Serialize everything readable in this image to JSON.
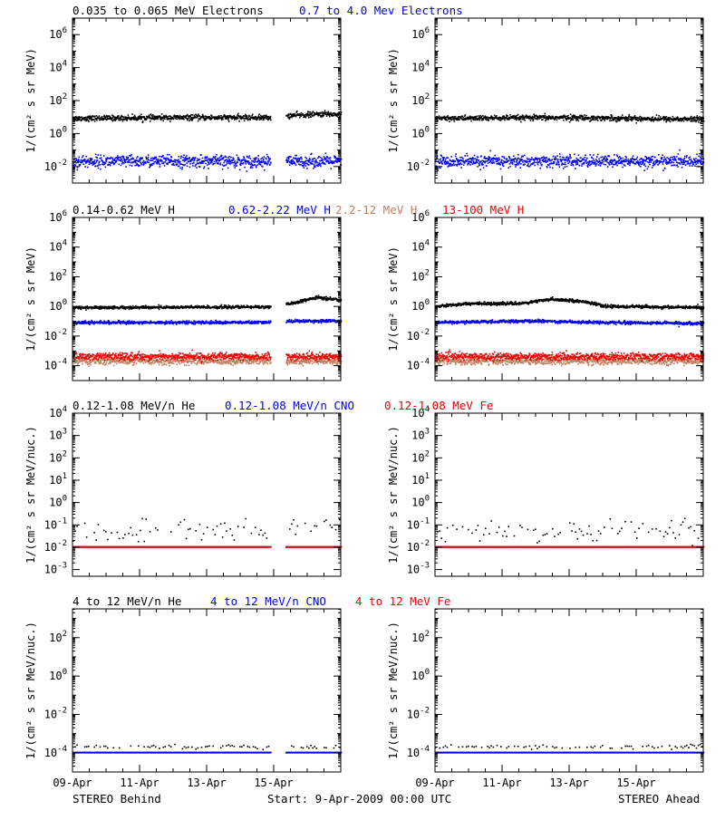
{
  "colors": {
    "black": "#000000",
    "blue": "#0000ee",
    "brown": "#c08060",
    "red": "#ee0000"
  },
  "x_axis": {
    "labels": [
      "09-Apr",
      "11-Apr",
      "13-Apr",
      "15-Apr"
    ],
    "xlim": [
      0,
      8
    ],
    "tick_days": [
      0,
      2,
      4,
      6
    ],
    "minor_step": 0.5
  },
  "footer": {
    "left": "STEREO Behind",
    "center": "Start:  9-Apr-2009 00:00 UTC",
    "right": "STEREO Ahead"
  },
  "chart_data": [
    {
      "type": "scatter",
      "row": 0,
      "legend": [
        {
          "text": "0.035 to 0.065 MeV Electrons",
          "color": "#000000"
        },
        {
          "text": "0.7 to 4.0 Mev Electrons",
          "color": "#0000ee"
        }
      ],
      "ylabel": "1/(cm² s sr MeV)",
      "ylim_exp": [
        -3,
        7
      ],
      "tick_exps": [
        -2,
        0,
        2,
        4,
        6
      ],
      "panels": [
        {
          "name": "STEREO Behind",
          "gap": [
            5.9,
            6.35
          ],
          "series": [
            {
              "name": "0.035 to 0.065 MeV Electrons",
              "color": "#000000",
              "profile": [
                [
                  0,
                  8
                ],
                [
                  3,
                  9
                ],
                [
                  5.8,
                  9
                ],
                [
                  6.5,
                  12
                ],
                [
                  7.5,
                  15
                ],
                [
                  8,
                  14
                ]
              ],
              "scatter": 0.08
            },
            {
              "name": "0.7 to 4.0 Mev Electrons",
              "color": "#0000ee",
              "profile": [
                [
                  0,
                  0.02
                ],
                [
                  8,
                  0.02
                ]
              ],
              "scatter": 0.18
            }
          ]
        },
        {
          "name": "STEREO Ahead",
          "gap": null,
          "series": [
            {
              "name": "0.035 to 0.065 MeV Electrons",
              "color": "#000000",
              "profile": [
                [
                  0,
                  8
                ],
                [
                  4,
                  9
                ],
                [
                  8,
                  7
                ]
              ],
              "scatter": 0.08
            },
            {
              "name": "0.7 to 4.0 Mev Electrons",
              "color": "#0000ee",
              "profile": [
                [
                  0,
                  0.02
                ],
                [
                  8,
                  0.02
                ]
              ],
              "scatter": 0.18
            }
          ]
        }
      ]
    },
    {
      "type": "scatter",
      "row": 1,
      "legend": [
        {
          "text": "0.14-0.62 MeV H",
          "color": "#000000"
        },
        {
          "text": "0.62-2.22 MeV H",
          "color": "#0000ee"
        },
        {
          "text": "2.2-12 MeV H",
          "color": "#c08060"
        },
        {
          "text": "13-100 MeV H",
          "color": "#ee0000"
        }
      ],
      "ylabel": "1/(cm² s sr MeV)",
      "ylim_exp": [
        -5,
        6
      ],
      "tick_exps": [
        -4,
        -2,
        0,
        2,
        4,
        6
      ],
      "panels": [
        {
          "name": "STEREO Behind",
          "gap": [
            5.9,
            6.35
          ],
          "series": [
            {
              "name": "0.14-0.62 MeV H",
              "color": "#000000",
              "profile": [
                [
                  0,
                  0.8
                ],
                [
                  5.8,
                  0.9
                ],
                [
                  6.5,
                  1.5
                ],
                [
                  7.3,
                  4
                ],
                [
                  8,
                  2.5
                ]
              ],
              "scatter": 0.05
            },
            {
              "name": "0.62-2.22 MeV H",
              "color": "#0000ee",
              "profile": [
                [
                  0,
                  0.08
                ],
                [
                  5.8,
                  0.08
                ],
                [
                  6.5,
                  0.1
                ],
                [
                  8,
                  0.1
                ]
              ],
              "scatter": 0.05
            },
            {
              "name": "2.2-12 MeV H",
              "color": "#c08060",
              "profile": [
                [
                  0,
                  0.0002
                ],
                [
                  8,
                  0.0002
                ]
              ],
              "scatter": 0.12
            },
            {
              "name": "13-100 MeV H",
              "color": "#ee0000",
              "profile": [
                [
                  0,
                  0.0004
                ],
                [
                  8,
                  0.0004
                ]
              ],
              "scatter": 0.12
            }
          ]
        },
        {
          "name": "STEREO Ahead",
          "gap": null,
          "series": [
            {
              "name": "0.14-0.62 MeV H",
              "color": "#000000",
              "profile": [
                [
                  0,
                  1
                ],
                [
                  1,
                  1.5
                ],
                [
                  2.5,
                  1.5
                ],
                [
                  3.5,
                  3
                ],
                [
                  4.5,
                  2
                ],
                [
                  5,
                  1
                ],
                [
                  8,
                  0.8
                ]
              ],
              "scatter": 0.05
            },
            {
              "name": "0.62-2.22 MeV H",
              "color": "#0000ee",
              "profile": [
                [
                  0,
                  0.08
                ],
                [
                  3,
                  0.1
                ],
                [
                  5,
                  0.08
                ],
                [
                  8,
                  0.07
                ]
              ],
              "scatter": 0.05
            },
            {
              "name": "2.2-12 MeV H",
              "color": "#c08060",
              "profile": [
                [
                  0,
                  0.0002
                ],
                [
                  8,
                  0.0002
                ]
              ],
              "scatter": 0.12
            },
            {
              "name": "13-100 MeV H",
              "color": "#ee0000",
              "profile": [
                [
                  0,
                  0.0004
                ],
                [
                  8,
                  0.0004
                ]
              ],
              "scatter": 0.12
            }
          ]
        }
      ]
    },
    {
      "type": "scatter",
      "row": 2,
      "legend": [
        {
          "text": "0.12-1.08 MeV/n He",
          "color": "#000000"
        },
        {
          "text": "0.12-1.08 MeV/n CNO",
          "color": "#0000ee"
        },
        {
          "text": "0.12-1.08 MeV Fe",
          "color": "#ee0000"
        }
      ],
      "ylabel": "1/(cm² s sr MeV/nuc.)",
      "ylim_exp": [
        -3.3,
        4
      ],
      "tick_exps": [
        -3,
        -2,
        -1,
        0,
        1,
        2,
        3,
        4
      ],
      "panels": [
        {
          "name": "STEREO Behind",
          "gap": [
            5.9,
            6.35
          ],
          "series": [
            {
              "name": "0.12-1.08 MeV/n He",
              "color": "#000000",
              "profile": [
                [
                  0,
                  0.05
                ],
                [
                  5.8,
                  0.05
                ],
                [
                  6.4,
                  0.1
                ],
                [
                  8,
                  0.1
                ]
              ],
              "scatter": 0.25,
              "sparse": true
            },
            {
              "name": "0.12-1.08 MeV/n CNO",
              "color": "#0000ee",
              "profile": [
                [
                  0,
                  0.01
                ],
                [
                  8,
                  0.01
                ]
              ],
              "scatter": 0.0
            },
            {
              "name": "0.12-1.08 MeV Fe",
              "color": "#ee0000",
              "profile": [
                [
                  0,
                  0.01
                ],
                [
                  8,
                  0.01
                ]
              ],
              "scatter": 0.0
            }
          ]
        },
        {
          "name": "STEREO Ahead",
          "gap": null,
          "series": [
            {
              "name": "0.12-1.08 MeV/n He",
              "color": "#000000",
              "profile": [
                [
                  0,
                  0.05
                ],
                [
                  8,
                  0.05
                ]
              ],
              "scatter": 0.25,
              "sparse": true
            },
            {
              "name": "0.12-1.08 MeV/n CNO",
              "color": "#0000ee",
              "profile": [
                [
                  0,
                  0.01
                ],
                [
                  8,
                  0.01
                ]
              ],
              "scatter": 0.0
            },
            {
              "name": "0.12-1.08 MeV Fe",
              "color": "#ee0000",
              "profile": [
                [
                  0,
                  0.01
                ],
                [
                  8,
                  0.01
                ]
              ],
              "scatter": 0.0
            }
          ]
        }
      ]
    },
    {
      "type": "scatter",
      "row": 3,
      "legend": [
        {
          "text": "4 to 12 MeV/n He",
          "color": "#000000"
        },
        {
          "text": "4 to 12 MeV/n CNO",
          "color": "#0000ee"
        },
        {
          "text": "4 to 12 MeV Fe",
          "color": "#ee0000"
        }
      ],
      "ylabel": "1/(cm² s sr MeV/nuc.)",
      "ylim_exp": [
        -5,
        3.5
      ],
      "tick_exps": [
        -4,
        -2,
        0,
        2
      ],
      "panels": [
        {
          "name": "STEREO Behind",
          "gap": [
            5.9,
            6.35
          ],
          "series": [
            {
              "name": "4 to 12 MeV/n He",
              "color": "#000000",
              "profile": [
                [
                  0,
                  0.0002
                ],
                [
                  8,
                  0.0002
                ]
              ],
              "scatter": 0.05,
              "sparse": true
            },
            {
              "name": "4 to 12 MeV/n CNO",
              "color": "#0000ee",
              "profile": [
                [
                  0,
                  0.0001
                ],
                [
                  8,
                  0.0001
                ]
              ],
              "scatter": 0.0
            }
          ]
        },
        {
          "name": "STEREO Ahead",
          "gap": null,
          "series": [
            {
              "name": "4 to 12 MeV/n He",
              "color": "#000000",
              "profile": [
                [
                  0,
                  0.0002
                ],
                [
                  8,
                  0.0002
                ]
              ],
              "scatter": 0.05,
              "sparse": true
            },
            {
              "name": "4 to 12 MeV/n CNO",
              "color": "#0000ee",
              "profile": [
                [
                  0,
                  0.0001
                ],
                [
                  8,
                  0.0001
                ]
              ],
              "scatter": 0.0
            }
          ]
        }
      ]
    }
  ]
}
